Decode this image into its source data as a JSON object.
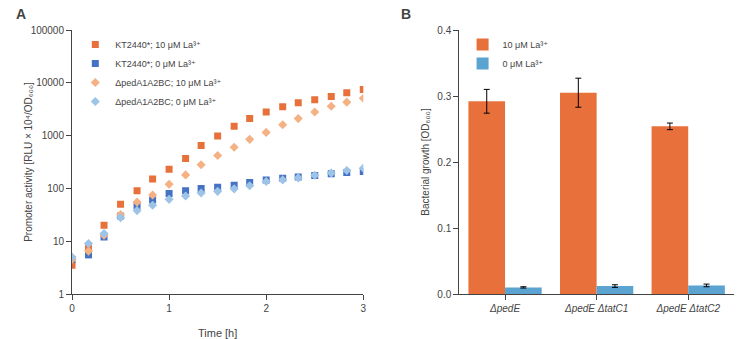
{
  "chart_data": [
    {
      "type": "scatter",
      "annotations": [
        "A"
      ],
      "xlabel": "Time [h]",
      "ylabel": "Promoter activity [RLU × 10⁴/OD₆₀₀]",
      "log": "y",
      "grid": false,
      "legend": "upper left",
      "xlim": [
        0,
        3
      ],
      "xticks": [
        0,
        1,
        2,
        3
      ],
      "ylim": [
        1,
        100000
      ],
      "yticks": [
        1,
        10,
        100,
        1000,
        10000,
        100000
      ],
      "x": [
        0.0,
        0.17,
        0.33,
        0.5,
        0.67,
        0.83,
        1.0,
        1.17,
        1.33,
        1.5,
        1.67,
        1.83,
        2.0,
        2.17,
        2.33,
        2.5,
        2.67,
        2.83,
        3.0
      ],
      "series": [
        {
          "name": "KT2440*; 10 μM La³⁺",
          "color": "#E8703A",
          "marker": "square",
          "values": [
            3.5,
            7.5,
            20,
            50,
            90,
            150,
            230,
            370,
            650,
            980,
            1500,
            2100,
            2800,
            3500,
            4200,
            4800,
            5500,
            6500,
            7500
          ]
        },
        {
          "name": "KT2440*; 0 μM La³⁺",
          "color": "#4472C4",
          "marker": "square",
          "values": [
            4.5,
            5.5,
            12,
            30,
            47,
            60,
            80,
            90,
            100,
            105,
            115,
            130,
            145,
            155,
            165,
            175,
            190,
            200,
            210
          ]
        },
        {
          "name": "ΔpedA1A2BC; 10 μM La³⁺",
          "color": "#F4B183",
          "marker": "diamond",
          "values": [
            4.5,
            6.5,
            13,
            32,
            55,
            75,
            120,
            180,
            280,
            420,
            600,
            850,
            1150,
            1600,
            2100,
            2800,
            3600,
            4300,
            5100
          ]
        },
        {
          "name": "ΔpedA1A2BC; 0 μM La³⁺",
          "color": "#9DC3E6",
          "marker": "diamond",
          "values": [
            5.0,
            9.0,
            14,
            28,
            38,
            48,
            62,
            72,
            82,
            88,
            98,
            112,
            135,
            145,
            158,
            178,
            195,
            218,
            242
          ]
        }
      ]
    },
    {
      "type": "bar",
      "annotations": [
        "B"
      ],
      "ylabel": "Bacterial growth [OD₆₀₀]",
      "grid": false,
      "legend": "upper left",
      "ylim": [
        0,
        0.4
      ],
      "yticks": [
        {
          "value": 0.0,
          "label": "0.0"
        },
        0.1,
        0.2,
        0.3,
        0.4
      ],
      "categories": [
        "ΔpedE",
        "ΔpedE ΔtatC1",
        "ΔpedE ΔtatC2"
      ],
      "series": [
        {
          "name": "10 μM La³⁺",
          "color": "#E8703A",
          "values": [
            0.292,
            0.305,
            0.254
          ],
          "errors": [
            0.018,
            0.022,
            0.005
          ]
        },
        {
          "name": "0 μM La³⁺",
          "color": "#5BA3D0",
          "values": [
            0.01,
            0.012,
            0.013
          ],
          "errors": [
            0.001,
            0.002,
            0.002
          ]
        }
      ]
    }
  ]
}
